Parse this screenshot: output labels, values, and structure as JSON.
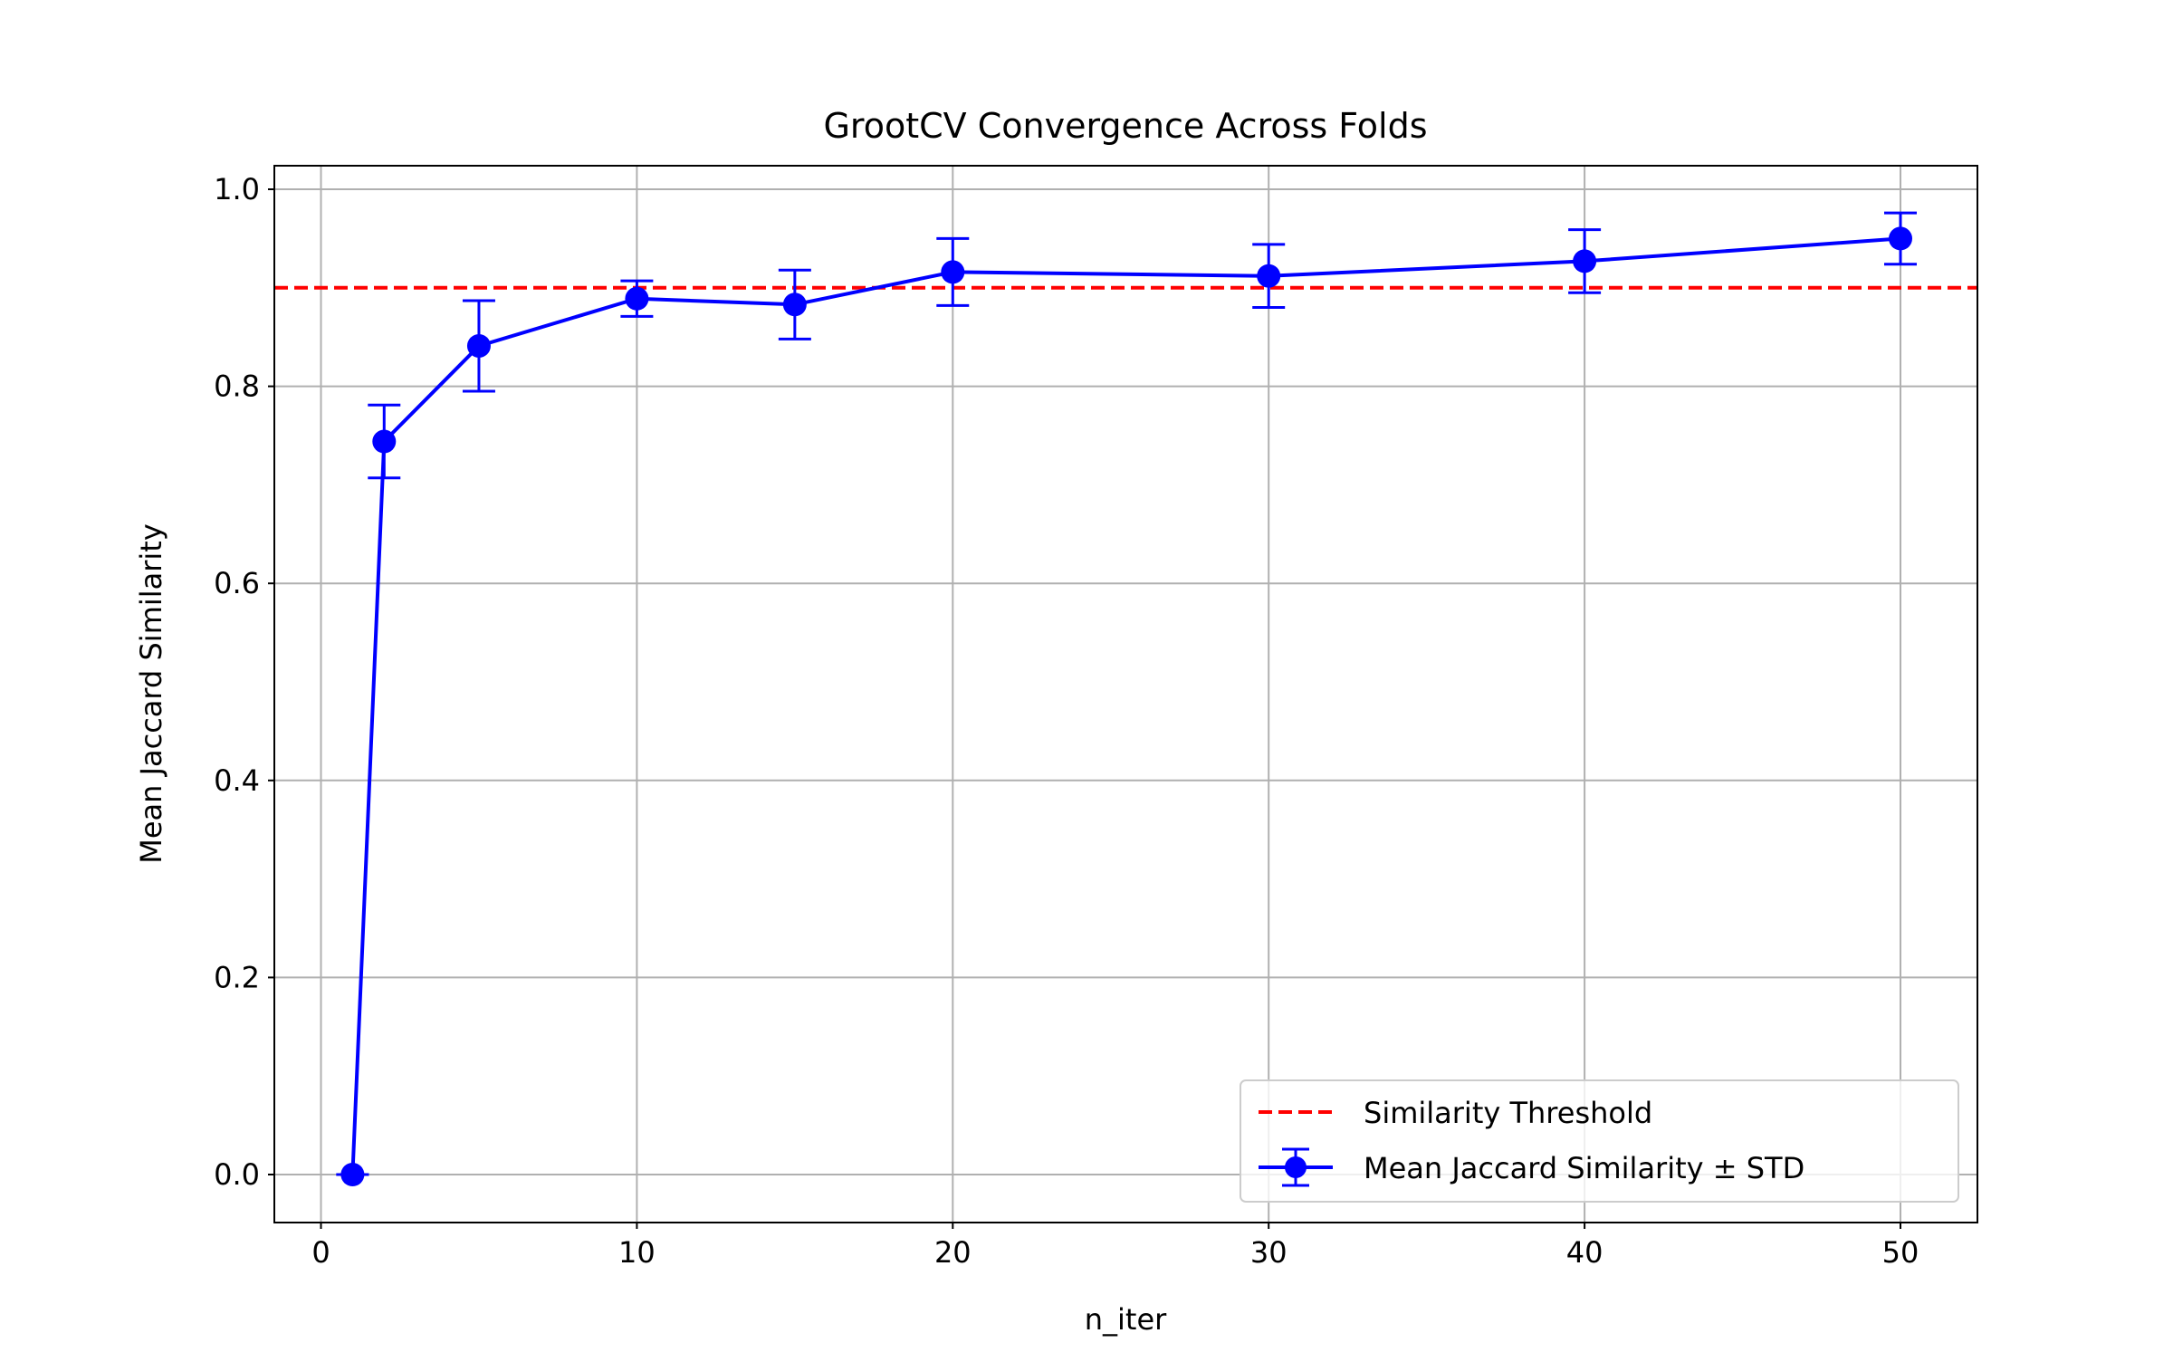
{
  "chart_data": {
    "type": "line",
    "title": "GrootCV Convergence Across Folds",
    "xlabel": "n_iter",
    "ylabel": "Mean Jaccard Similarity",
    "xlim": [
      -1.5,
      52.5
    ],
    "ylim": [
      -0.048,
      1.025
    ],
    "xticks": [
      0,
      10,
      20,
      30,
      40,
      50
    ],
    "yticks": [
      0.0,
      0.2,
      0.4,
      0.6,
      0.8,
      1.0
    ],
    "xtick_labels": [
      "0",
      "10",
      "20",
      "30",
      "40",
      "50"
    ],
    "ytick_labels": [
      "0.0",
      "0.2",
      "0.4",
      "0.6",
      "0.8",
      "1.0"
    ],
    "grid": true,
    "legend_position": "lower-right",
    "series": [
      {
        "name": "Mean Jaccard Similarity ± STD",
        "color": "#0000ff",
        "x": [
          1,
          2,
          5,
          10,
          15,
          20,
          30,
          40,
          50
        ],
        "y": [
          0.0,
          0.744,
          0.841,
          0.889,
          0.883,
          0.916,
          0.912,
          0.927,
          0.95
        ],
        "std": [
          0.0,
          0.037,
          0.046,
          0.018,
          0.035,
          0.034,
          0.032,
          0.032,
          0.026
        ]
      }
    ],
    "threshold": {
      "name": "Similarity Threshold",
      "value": 0.9,
      "color": "#ff0000"
    }
  }
}
